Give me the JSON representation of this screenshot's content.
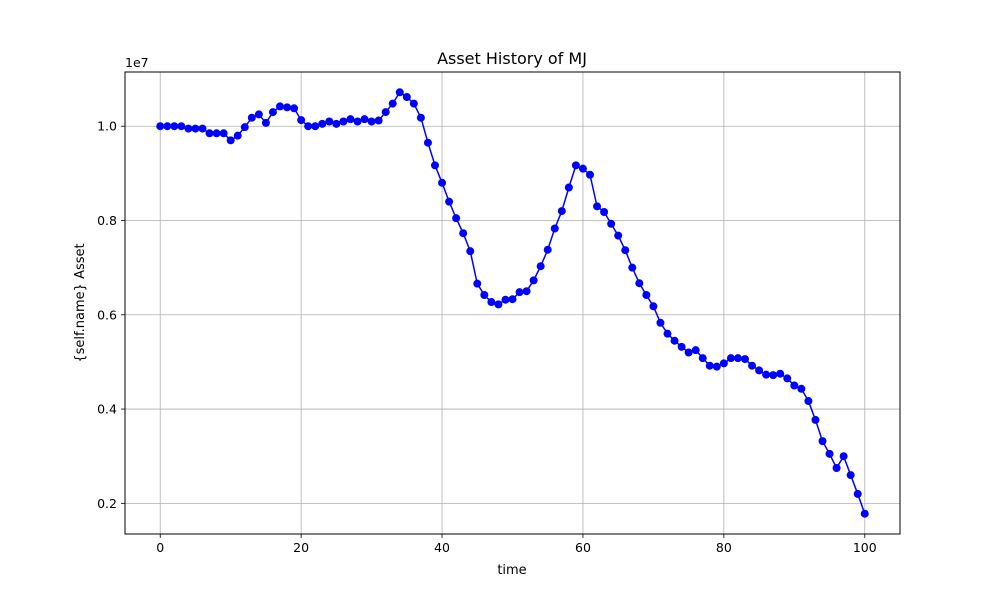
{
  "chart_data": {
    "type": "line",
    "title": "Asset History of MJ",
    "xlabel": "time",
    "ylabel": "{self.name} Asset",
    "y_offset_label": "1e7",
    "xlim": [
      -5,
      105
    ],
    "ylim": [
      0.135,
      1.115
    ],
    "xticks": [
      0,
      20,
      40,
      60,
      80,
      100
    ],
    "yticks": [
      0.2,
      0.4,
      0.6,
      0.8,
      1.0
    ],
    "xtick_labels": [
      "0",
      "20",
      "40",
      "60",
      "80",
      "100"
    ],
    "ytick_labels": [
      "0.2",
      "0.4",
      "0.6",
      "0.8",
      "1.0"
    ],
    "grid": true,
    "series": [
      {
        "color": "#0000ff",
        "marker": "circle",
        "x": [
          0,
          1,
          2,
          3,
          4,
          5,
          6,
          7,
          8,
          9,
          10,
          11,
          12,
          13,
          14,
          15,
          16,
          17,
          18,
          19,
          20,
          21,
          22,
          23,
          24,
          25,
          26,
          27,
          28,
          29,
          30,
          31,
          32,
          33,
          34,
          35,
          36,
          37,
          38,
          39,
          40,
          41,
          42,
          43,
          44,
          45,
          46,
          47,
          48,
          49,
          50,
          51,
          52,
          53,
          54,
          55,
          56,
          57,
          58,
          59,
          60,
          61,
          62,
          63,
          64,
          65,
          66,
          67,
          68,
          69,
          70,
          71,
          72,
          73,
          74,
          75,
          76,
          77,
          78,
          79,
          80,
          81,
          82,
          83,
          84,
          85,
          86,
          87,
          88,
          89,
          90,
          91,
          92,
          93,
          94,
          95,
          96,
          97,
          98,
          99,
          100
        ],
        "y": [
          1.0,
          1.0,
          1.0,
          1.0,
          0.995,
          0.995,
          0.995,
          0.985,
          0.985,
          0.985,
          0.97,
          0.98,
          0.998,
          1.018,
          1.025,
          1.007,
          1.03,
          1.042,
          1.04,
          1.038,
          1.013,
          1.0,
          1.0,
          1.005,
          1.01,
          1.005,
          1.01,
          1.015,
          1.01,
          1.015,
          1.01,
          1.012,
          1.03,
          1.048,
          1.072,
          1.062,
          1.048,
          1.018,
          0.965,
          0.917,
          0.88,
          0.84,
          0.805,
          0.773,
          0.735,
          0.666,
          0.642,
          0.627,
          0.622,
          0.632,
          0.633,
          0.648,
          0.65,
          0.673,
          0.703,
          0.738,
          0.783,
          0.82,
          0.87,
          0.917,
          0.91,
          0.897,
          0.83,
          0.818,
          0.793,
          0.768,
          0.737,
          0.7,
          0.667,
          0.642,
          0.618,
          0.583,
          0.56,
          0.545,
          0.532,
          0.52,
          0.525,
          0.508,
          0.492,
          0.49,
          0.497,
          0.508,
          0.508,
          0.506,
          0.492,
          0.482,
          0.473,
          0.472,
          0.475,
          0.465,
          0.45,
          0.443,
          0.417,
          0.377,
          0.332,
          0.305,
          0.275,
          0.3,
          0.26,
          0.22,
          0.178
        ]
      }
    ]
  }
}
